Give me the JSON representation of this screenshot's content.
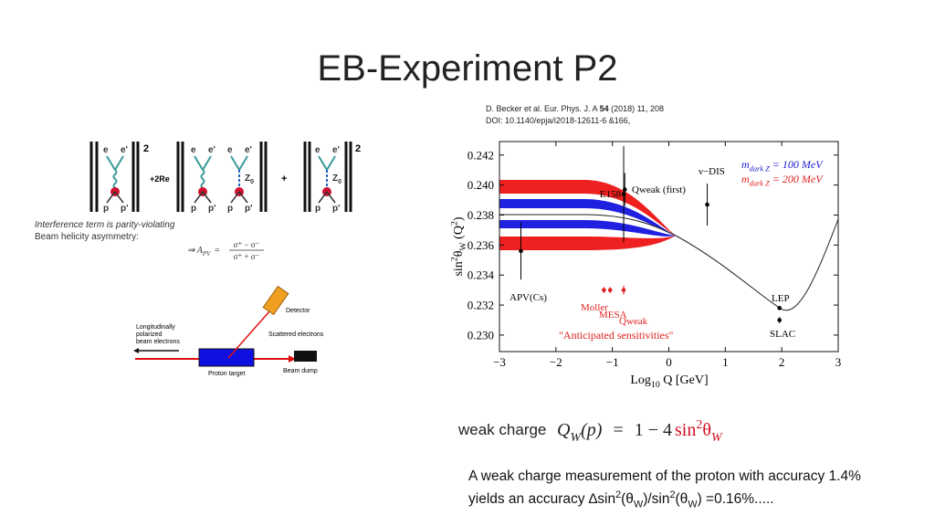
{
  "header": {
    "title": "EB-Experiment P2",
    "citation": {
      "line1": [
        "D. Becker et al.  Eur. Phys. J. A ",
        "54",
        " (2018) 11, 208"
      ],
      "line2": "DOI: 10.1140/epja/i2018-12611-6 &166,"
    }
  },
  "amplitude": {
    "diagrams": [
      {
        "top": [
          "e",
          "e'"
        ],
        "bottom": [
          "p",
          "p'"
        ]
      },
      {
        "top": [
          "e",
          "e'"
        ],
        "bottom": [
          "p",
          "p'"
        ]
      },
      {
        "top": [
          "e",
          "e'"
        ],
        "bottom": [
          "p",
          "p'"
        ],
        "boson": [
          "Z",
          "0"
        ]
      },
      {
        "top": [
          "e",
          "e'"
        ],
        "bottom": [
          "p",
          "p'"
        ],
        "boson": [
          "Z",
          "0"
        ]
      }
    ],
    "powers": [
      "2",
      "2"
    ],
    "operators": [
      "+2Re",
      "+"
    ],
    "note": [
      "Interference term is parity-violating",
      "Beam helicity asymmetry:"
    ],
    "asymmetry": {
      "lhs": "⇒ A",
      "sub": "PV",
      "eq": "=",
      "num": "σ⁺ − σ⁻",
      "den": "σ⁺ + σ⁻"
    }
  },
  "setup": {
    "beam": [
      "Longitudinally",
      "polarized",
      "beam electrons"
    ],
    "detector": "Detector",
    "scattered": "Scattered electrons",
    "target": "Proton target",
    "dump": "Beam dump"
  },
  "plot": {
    "xlim": [
      -3,
      3
    ],
    "ylim": [
      0.2289,
      0.2429
    ],
    "xticks": [
      {
        "value": -3,
        "label": "−3"
      },
      {
        "value": -2,
        "label": "−2"
      },
      {
        "value": -1,
        "label": "−1"
      },
      0,
      1,
      2,
      3
    ],
    "yticks": [
      {
        "value": 0.23,
        "label": "0.230"
      },
      0.232,
      0.234,
      0.236,
      0.238,
      {
        "value": 0.24,
        "label": "0.240"
      },
      0.242
    ],
    "ylabel": [
      "sin",
      "2",
      "θ",
      "W",
      " (Q",
      "2",
      ")"
    ],
    "xlabel": [
      "Log",
      "10",
      " Q [GeV]"
    ],
    "legend": [
      {
        "symbol": "m",
        "subscript": "dark Z",
        "text": " = 100 MeV",
        "color": "#1a1ad0"
      },
      {
        "symbol": "m",
        "subscript": "dark Z",
        "text": " = 200 MeV",
        "color": "#e02020"
      }
    ],
    "points": [
      {
        "name": "APV(Cs)",
        "x": -2.62,
        "y": 0.2356,
        "err": 0.0019,
        "color": "#000000"
      },
      {
        "name": "E158",
        "x": -0.8,
        "y": 0.2394,
        "err": 0.0032,
        "color": "#000000"
      },
      {
        "name": "Qweak (first)",
        "x": -0.78,
        "y": 0.2397,
        "err": 0.0011,
        "color": "#000000"
      },
      {
        "name": "ν−DIS",
        "x": 0.68,
        "y": 0.2387,
        "err": 0.0014,
        "color": "#000000"
      },
      {
        "name": "LEP",
        "x": 1.96,
        "y": 0.2318,
        "color": "#000000"
      },
      {
        "name": "SLAC",
        "x": 1.96,
        "y": 0.231,
        "err": 0.0002,
        "color": "#000000"
      },
      {
        "name": "Moller",
        "x": -1.15,
        "y": 0.233,
        "err": 0.0002,
        "color": "#e02020"
      },
      {
        "name": "MESA",
        "x": -1.04,
        "y": 0.233,
        "err": 0.0002,
        "color": "#e02020"
      },
      {
        "name": "Qweak",
        "x": -0.8,
        "y": 0.233,
        "err": 0.0003,
        "color": "#e02020"
      }
    ],
    "annotation": "\"Anticipated sensitivities\""
  },
  "formula": {
    "label": "weak charge",
    "lhs": "Q",
    "sub": "W",
    "arg": "(p)",
    "eq": "=",
    "rhs": "1 − 4",
    "sin": "sin",
    "sup": "2",
    "theta": "θ",
    "tsub": "W"
  },
  "footer": {
    "line1": "A weak charge measurement of the proton with accuracy 1.4%",
    "line2": [
      "yields an accuracy ∆sin",
      "2",
      "(θ",
      "W",
      ")/sin",
      "2",
      "(θ",
      "W",
      ") =0.16%....."
    ]
  }
}
